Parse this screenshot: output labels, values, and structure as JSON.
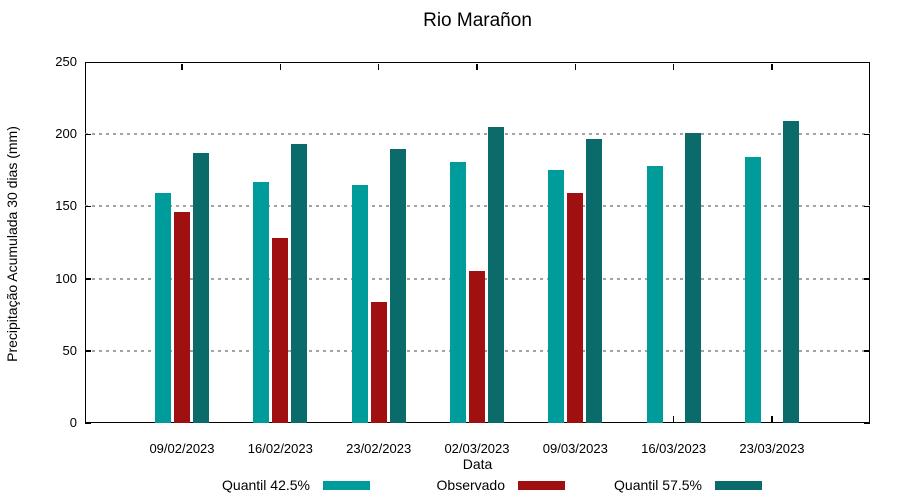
{
  "chart_data": {
    "type": "bar",
    "title": "Rio Marañon",
    "xlabel": "Data",
    "ylabel": "Precipitação Acumulada 30 dias (mm)",
    "ylim": [
      0,
      250
    ],
    "yticks": [
      0,
      50,
      100,
      150,
      200,
      250
    ],
    "grid": {
      "horizontal": true,
      "style": "dashed",
      "color": "#a3a3a3"
    },
    "legend_position": "bottom",
    "background_color": "#ffffff",
    "axis_color": "#000000",
    "categories": [
      "09/02/2023",
      "16/02/2023",
      "23/02/2023",
      "02/03/2023",
      "09/03/2023",
      "16/03/2023",
      "23/03/2023"
    ],
    "series": [
      {
        "name": "Quantil 42.5%",
        "color": "#009B9B",
        "values": [
          159,
          167,
          165,
          181,
          175,
          178,
          184
        ]
      },
      {
        "name": "Observado",
        "color": "#A01010",
        "values": [
          146,
          128,
          84,
          105,
          159,
          null,
          null
        ]
      },
      {
        "name": "Quantil 57.5%",
        "color": "#0B6A6A",
        "values": [
          187,
          193,
          190,
          205,
          197,
          201,
          209
        ]
      }
    ]
  }
}
